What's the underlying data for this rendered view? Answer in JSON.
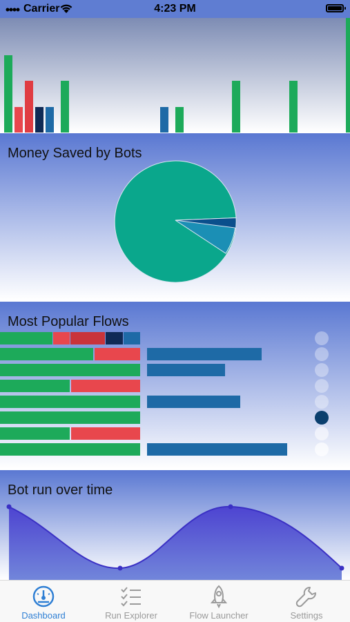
{
  "status_bar": {
    "carrier": "Carrier",
    "time": "4:23 PM"
  },
  "panels": {
    "money_saved": {
      "title": "Money Saved by Bots"
    },
    "popular_flows": {
      "title": "Most Popular Flows"
    },
    "bot_run": {
      "title": "Bot run over time"
    }
  },
  "colors": {
    "green": "#1daa5a",
    "red": "#e8474d",
    "dark_red": "#c9343a",
    "navy": "#0f2a55",
    "blue": "#1e6aa6",
    "teal": "#0aa78c",
    "accent": "#2f7fd4",
    "purple": "#4a4ad6"
  },
  "tabs": [
    {
      "label": "Dashboard",
      "icon": "speedometer-icon",
      "active": true
    },
    {
      "label": "Run Explorer",
      "icon": "checklist-icon",
      "active": false
    },
    {
      "label": "Flow Launcher",
      "icon": "rocket-icon",
      "active": false
    },
    {
      "label": "Settings",
      "icon": "wrench-icon",
      "active": false
    }
  ],
  "pagination": {
    "pages": 8,
    "active": 5
  }
}
